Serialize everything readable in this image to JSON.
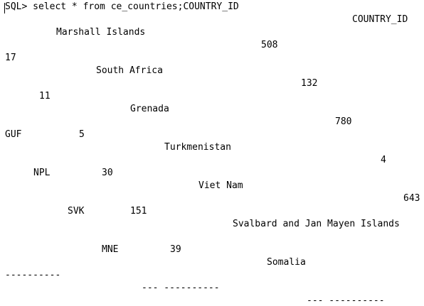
{
  "terminal": {
    "command_line": "SQL> select * from ce_countries;COUNTRY_ID",
    "output": {
      "header_right": "COUNTRY_ID",
      "r01": "Marshall Islands",
      "r02": "508",
      "r03": "17",
      "r04": "South Africa",
      "r05": "132",
      "r06": "11",
      "r07": "Grenada",
      "r08": "780",
      "r09_code": "GUF",
      "r09_num": "5",
      "r10": "Turkmenistan",
      "r11": "4",
      "r12_code": "NPL",
      "r12_num": "30",
      "r13": "Viet Nam",
      "r14": "643",
      "r15_code": "SVK",
      "r15_num": "151",
      "r16": "Svalbard and Jan Mayen Islands",
      "r17_code": "MNE",
      "r17_num": "39",
      "r18": "Somalia",
      "sep1": "----------",
      "sep2": "--- ----------",
      "sep3": "--- ----------"
    }
  }
}
